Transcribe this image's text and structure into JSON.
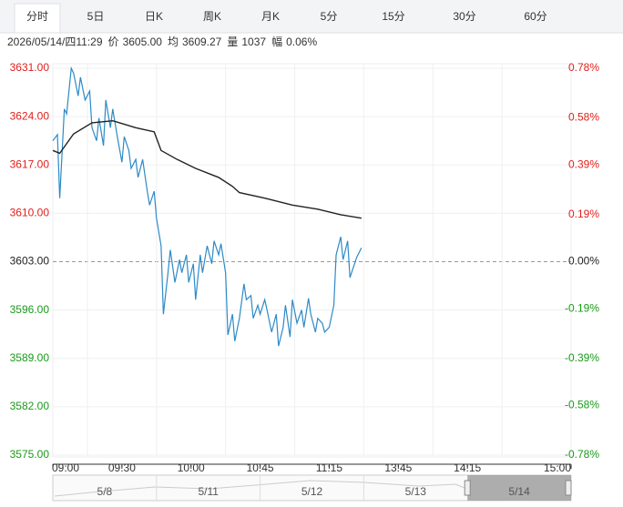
{
  "tabs": [
    "分时",
    "5日",
    "日K",
    "周K",
    "月K",
    "5分",
    "15分",
    "30分",
    "60分"
  ],
  "active_tab": 0,
  "info": {
    "datetime": "2026/05/14/四11:29",
    "items": [
      {
        "label": "价",
        "value": "3605.00"
      },
      {
        "label": "均",
        "value": "3609.27"
      },
      {
        "label": "量",
        "value": "1037"
      },
      {
        "label": "幅",
        "value": "0.06%"
      }
    ]
  },
  "chart_data": {
    "type": "line",
    "xlim": [
      0,
      225
    ],
    "xticks": [
      {
        "value": 0,
        "label": "09:00"
      },
      {
        "value": 30,
        "label": "09:30"
      },
      {
        "value": 60,
        "label": "10:00"
      },
      {
        "value": 90,
        "label": "10:45"
      },
      {
        "value": 120,
        "label": "11:15"
      },
      {
        "value": 150,
        "label": "13:45"
      },
      {
        "value": 180,
        "label": "14:15"
      },
      {
        "value": 225,
        "label": "15:00"
      }
    ],
    "xgrid": [
      15,
      45,
      75,
      105,
      135,
      165,
      195
    ],
    "ylim": [
      3575,
      3631
    ],
    "yticks": [
      {
        "value": 3631,
        "label": "3631.00"
      },
      {
        "value": 3624,
        "label": "3624.00"
      },
      {
        "value": 3617,
        "label": "3617.00"
      },
      {
        "value": 3610,
        "label": "3610.00"
      },
      {
        "value": 3603,
        "label": "3603.00"
      },
      {
        "value": 3596,
        "label": "3596.00"
      },
      {
        "value": 3589,
        "label": "3589.00"
      },
      {
        "value": 3582,
        "label": "3582.00"
      },
      {
        "value": 3575,
        "label": "3575.00"
      }
    ],
    "y2lim": [
      -0.78,
      0.78
    ],
    "y2ticks": [
      {
        "value": 0.78,
        "label": "0.78%"
      },
      {
        "value": 0.58,
        "label": "0.58%"
      },
      {
        "value": 0.39,
        "label": "0.39%"
      },
      {
        "value": 0.19,
        "label": "0.19%"
      },
      {
        "value": 0,
        "label": "0.00%"
      },
      {
        "value": -0.19,
        "label": "-0.19%"
      },
      {
        "value": -0.39,
        "label": "-0.39%"
      },
      {
        "value": -0.58,
        "label": "-0.58%"
      },
      {
        "value": -0.78,
        "label": "-0.78%"
      }
    ],
    "base": 3603,
    "up_color": "#e0201c",
    "down_color": "#1a9a1a",
    "grid": true,
    "series": [
      {
        "color": "#2d8ac7",
        "x": [
          0,
          2,
          3,
          5,
          6,
          8,
          9,
          11,
          12,
          14,
          16,
          17,
          19,
          20,
          22,
          23,
          25,
          26,
          28,
          30,
          31,
          33,
          34,
          36,
          37,
          39,
          41,
          42,
          44,
          45,
          47,
          48,
          50,
          51,
          53,
          55,
          56,
          58,
          59,
          61,
          62,
          64,
          65,
          67,
          69,
          70,
          72,
          73,
          75,
          76,
          78,
          79,
          81,
          83,
          84,
          86,
          87,
          89,
          90,
          92,
          93,
          95,
          97,
          98,
          100,
          101,
          103,
          104,
          106,
          108,
          109,
          111,
          112,
          114,
          115,
          117,
          118,
          120,
          122,
          123,
          125,
          126,
          128,
          129,
          131,
          132,
          134
        ],
        "values": [
          3620.5,
          3621.4,
          3612.2,
          3625.1,
          3624.4,
          3631,
          3630.3,
          3627.0,
          3629.7,
          3626.4,
          3627.7,
          3622.4,
          3620.5,
          3623.8,
          3619.8,
          3626.4,
          3622.4,
          3625.1,
          3621.1,
          3617.4,
          3621.1,
          3619.1,
          3616.5,
          3617.8,
          3615.2,
          3617.8,
          3613.2,
          3611.2,
          3613.2,
          3609.3,
          3605.3,
          3595.4,
          3601.4,
          3604.7,
          3600.0,
          3603.3,
          3601.4,
          3604.0,
          3600.0,
          3602.7,
          3597.5,
          3604.0,
          3601.4,
          3605.3,
          3602.7,
          3606.0,
          3604.0,
          3605.6,
          3601.4,
          3592.4,
          3595.4,
          3591.5,
          3594.8,
          3599.8,
          3597.5,
          3598.1,
          3594.8,
          3596.7,
          3595.4,
          3597.5,
          3596.0,
          3592.8,
          3595.4,
          3590.8,
          3593.5,
          3596.7,
          3592.1,
          3597.5,
          3594.1,
          3596.0,
          3593.5,
          3597.7,
          3595.4,
          3592.8,
          3594.8,
          3594.1,
          3592.8,
          3593.5,
          3596.7,
          3604.0,
          3606.6,
          3603.3,
          3606.0,
          3600.7,
          3602.7,
          3603.7,
          3605.0
        ]
      },
      {
        "color": "#222222",
        "x": [
          0,
          3,
          9,
          17,
          26,
          36,
          44,
          47,
          54,
          62,
          72,
          78,
          81,
          92,
          104,
          115,
          125,
          134
        ],
        "values": [
          3619.1,
          3618.7,
          3621.5,
          3623.1,
          3623.4,
          3622.4,
          3621.8,
          3619.1,
          3617.8,
          3616.5,
          3615.2,
          3613.9,
          3613.0,
          3612.2,
          3611.2,
          3610.6,
          3609.8,
          3609.3
        ]
      }
    ],
    "navigator": {
      "dates": [
        "5/8",
        "5/11",
        "5/12",
        "5/13",
        "5/14"
      ],
      "selected": 4
    }
  }
}
